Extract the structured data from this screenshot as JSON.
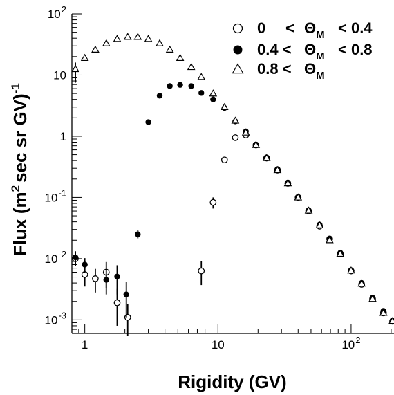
{
  "chart_data": {
    "type": "scatter",
    "title": "",
    "xlabel": "Rigidity (GV)",
    "ylabel_parts": {
      "a": "Flux (m",
      "a_sup": "2",
      "b": "sec sr GV)",
      "b_sup": "-1"
    },
    "x_scale": "log",
    "y_scale": "log",
    "xlim": [
      0.8,
      210
    ],
    "ylim": [
      0.0006,
      100
    ],
    "grid": false,
    "legend_position": "top-right",
    "x_ticks": [
      {
        "value": 1,
        "label": "1"
      },
      {
        "value": 10,
        "label": "10"
      },
      {
        "value": 100,
        "label": "10",
        "sup": "2"
      }
    ],
    "y_ticks": [
      {
        "value": 0.001,
        "label": "10",
        "sup": "-3"
      },
      {
        "value": 0.01,
        "label": "10",
        "sup": "-2"
      },
      {
        "value": 0.1,
        "label": "10",
        "sup": "-1"
      },
      {
        "value": 1,
        "label": "1",
        "sup": ""
      },
      {
        "value": 10,
        "label": "10",
        "sup": ""
      },
      {
        "value": 100,
        "label": "10",
        "sup": "2"
      }
    ],
    "series": [
      {
        "name": "0 < ΘM < 0.4",
        "legend_parts": {
          "lo": "0",
          "theta": "Θ",
          "sub": "M",
          "hi": "< 0.4"
        },
        "marker": "open-circle",
        "points": [
          {
            "x": 0.85,
            "y": 0.01,
            "lo": 0.0075,
            "hi": 0.0125
          },
          {
            "x": 1.0,
            "y": 0.0055,
            "lo": 0.0035,
            "hi": 0.0078
          },
          {
            "x": 1.2,
            "y": 0.0047,
            "lo": 0.0028,
            "hi": 0.0068
          },
          {
            "x": 1.45,
            "y": 0.006,
            "lo": 0.0033,
            "hi": 0.0088
          },
          {
            "x": 1.75,
            "y": 0.0019,
            "lo": 0.0008,
            "hi": 0.0032
          },
          {
            "x": 2.1,
            "y": 0.0011,
            "lo": 0.00055,
            "hi": 0.0018
          },
          {
            "x": 7.5,
            "y": 0.0063,
            "lo": 0.0037,
            "hi": 0.0092
          },
          {
            "x": 9.2,
            "y": 0.083,
            "lo": 0.066,
            "hi": 0.1
          },
          {
            "x": 11.2,
            "y": 0.41,
            "lo": 0.37,
            "hi": 0.45
          },
          {
            "x": 13.5,
            "y": 0.95,
            "lo": 0.9,
            "hi": 1.0
          },
          {
            "x": 16.2,
            "y": 1.05,
            "lo": 1.0,
            "hi": 1.1
          },
          {
            "x": 19.3,
            "y": 0.72
          },
          {
            "x": 23.2,
            "y": 0.44
          },
          {
            "x": 28,
            "y": 0.28
          },
          {
            "x": 33.5,
            "y": 0.17
          },
          {
            "x": 40,
            "y": 0.1
          },
          {
            "x": 48,
            "y": 0.06
          },
          {
            "x": 58,
            "y": 0.034
          },
          {
            "x": 69,
            "y": 0.021
          },
          {
            "x": 83,
            "y": 0.012
          },
          {
            "x": 100,
            "y": 0.0063
          },
          {
            "x": 120,
            "y": 0.0038
          },
          {
            "x": 145,
            "y": 0.0022
          },
          {
            "x": 175,
            "y": 0.0013
          },
          {
            "x": 205,
            "y": 0.00095
          }
        ]
      },
      {
        "name": "0.4 < ΘM < 0.8",
        "legend_parts": {
          "lo": "0.4 <",
          "theta": "Θ",
          "sub": "M",
          "hi": "< 0.8"
        },
        "marker": "filled-circle",
        "points": [
          {
            "x": 0.85,
            "y": 0.0105,
            "lo": 0.0078,
            "hi": 0.0132
          },
          {
            "x": 1.0,
            "y": 0.008,
            "lo": 0.0058,
            "hi": 0.0102
          },
          {
            "x": 1.45,
            "y": 0.0045,
            "lo": 0.0026,
            "hi": 0.0065
          },
          {
            "x": 1.75,
            "y": 0.0051,
            "lo": 0.0026,
            "hi": 0.0078
          },
          {
            "x": 2.05,
            "y": 0.0026,
            "lo": 0.0011,
            "hi": 0.0042
          },
          {
            "x": 2.5,
            "y": 0.025,
            "lo": 0.0215,
            "hi": 0.029
          },
          {
            "x": 3.0,
            "y": 1.7
          },
          {
            "x": 3.65,
            "y": 4.6
          },
          {
            "x": 4.35,
            "y": 6.6
          },
          {
            "x": 5.2,
            "y": 6.9
          },
          {
            "x": 6.3,
            "y": 6.6
          },
          {
            "x": 7.5,
            "y": 5.1
          },
          {
            "x": 9.2,
            "y": 4.0
          },
          {
            "x": 11.2,
            "y": 2.9
          },
          {
            "x": 13.5,
            "y": 1.75
          },
          {
            "x": 16.2,
            "y": 1.2
          },
          {
            "x": 19.3,
            "y": 0.73
          },
          {
            "x": 23.2,
            "y": 0.45
          },
          {
            "x": 28,
            "y": 0.29
          },
          {
            "x": 33.5,
            "y": 0.175
          },
          {
            "x": 40,
            "y": 0.102
          },
          {
            "x": 48,
            "y": 0.062
          },
          {
            "x": 58,
            "y": 0.036
          },
          {
            "x": 69,
            "y": 0.021
          },
          {
            "x": 83,
            "y": 0.0125
          },
          {
            "x": 100,
            "y": 0.0065
          },
          {
            "x": 120,
            "y": 0.004
          },
          {
            "x": 145,
            "y": 0.0023
          },
          {
            "x": 175,
            "y": 0.0014
          },
          {
            "x": 205,
            "y": 0.00098
          }
        ]
      },
      {
        "name": "0.8 < ΘM",
        "legend_parts": {
          "lo": "0.8 <",
          "theta": "Θ",
          "sub": "M",
          "hi": ""
        },
        "marker": "open-triangle",
        "points": [
          {
            "x": 0.85,
            "y": 12.5,
            "lo": 7.5,
            "hi": 16
          },
          {
            "x": 1.0,
            "y": 19
          },
          {
            "x": 1.2,
            "y": 26
          },
          {
            "x": 1.45,
            "y": 33
          },
          {
            "x": 1.75,
            "y": 39
          },
          {
            "x": 2.1,
            "y": 42
          },
          {
            "x": 2.5,
            "y": 42
          },
          {
            "x": 3.0,
            "y": 39
          },
          {
            "x": 3.65,
            "y": 33
          },
          {
            "x": 4.35,
            "y": 26
          },
          {
            "x": 5.2,
            "y": 19
          },
          {
            "x": 6.3,
            "y": 13.5
          },
          {
            "x": 7.5,
            "y": 9.3
          },
          {
            "x": 9.2,
            "y": 5.0
          },
          {
            "x": 11.2,
            "y": 3.0
          },
          {
            "x": 13.5,
            "y": 1.8
          },
          {
            "x": 16.2,
            "y": 1.15
          },
          {
            "x": 19.3,
            "y": 0.72
          },
          {
            "x": 23.2,
            "y": 0.44
          },
          {
            "x": 28,
            "y": 0.28
          },
          {
            "x": 33.5,
            "y": 0.17
          },
          {
            "x": 40,
            "y": 0.1
          },
          {
            "x": 48,
            "y": 0.061
          },
          {
            "x": 58,
            "y": 0.035
          },
          {
            "x": 69,
            "y": 0.02
          },
          {
            "x": 83,
            "y": 0.012
          },
          {
            "x": 100,
            "y": 0.0064
          },
          {
            "x": 120,
            "y": 0.0039
          },
          {
            "x": 145,
            "y": 0.0022
          },
          {
            "x": 175,
            "y": 0.0013
          },
          {
            "x": 205,
            "y": 0.00096
          }
        ]
      }
    ]
  }
}
